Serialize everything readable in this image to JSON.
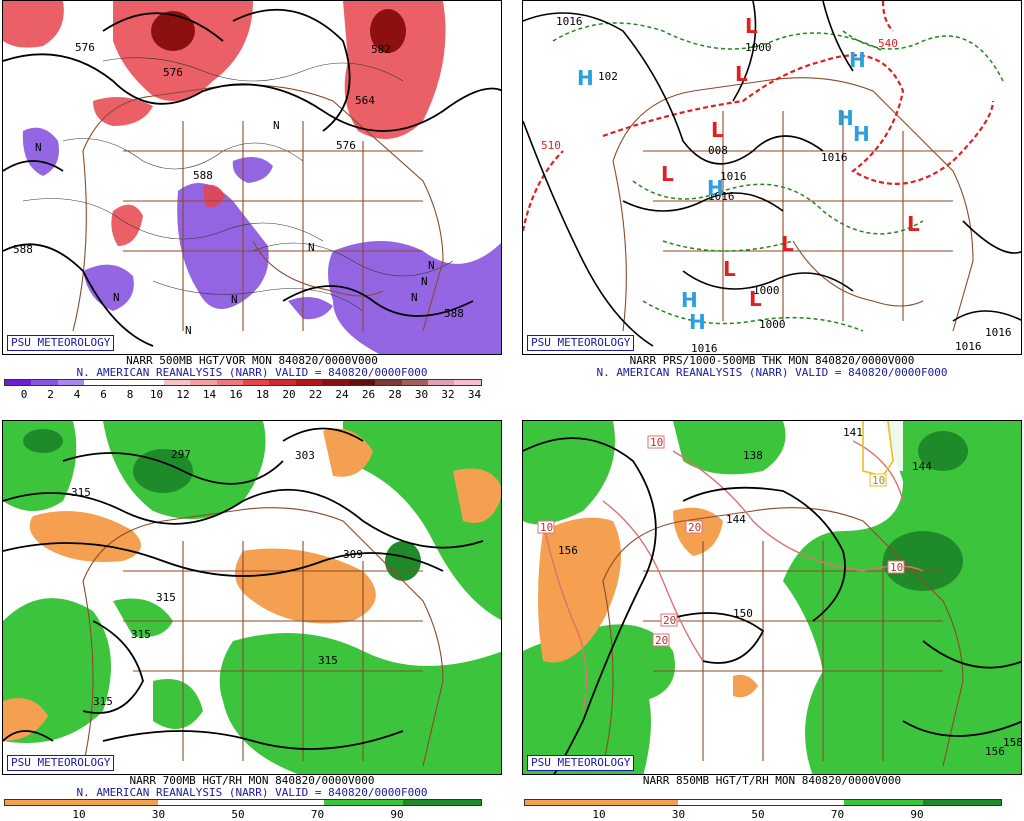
{
  "colors": {
    "vor_red": "#e8444c",
    "vor_pink": "#f4a0a6",
    "vor_purple": "#8855e0",
    "rh_orange": "#f4a050",
    "rh_green": "#3cc43c",
    "map_brown": "#8b4a2a",
    "h_blue": "#2aa0e0",
    "l_red": "#e02020"
  },
  "panels": [
    {
      "logo": "PSU METEOROLOGY",
      "title1": "NARR 500MB HGT/VOR MON 840820/0000V000",
      "title2": "N. AMERICAN REANALYSIS (NARR) VALID = 840820/0000F000",
      "colorbar_labels": [
        "0",
        "2",
        "4",
        "6",
        "8",
        "10",
        "12",
        "14",
        "16",
        "18",
        "20",
        "22",
        "24",
        "26",
        "28",
        "30",
        "32",
        "34"
      ],
      "contour_labels": [
        "576",
        "576",
        "582",
        "564",
        "576",
        "588",
        "588",
        "588",
        "N",
        "N",
        "N",
        "N",
        "N",
        "N",
        "N",
        "N",
        "N"
      ]
    },
    {
      "logo": "PSU METEOROLOGY",
      "title1": "NARR PRS/1000-500MB THK MON 840820/0000V000",
      "title2": "N. AMERICAN REANALYSIS (NARR) VALID = 840820/0000F000",
      "contour_labels": [
        "1016",
        "102",
        "1000",
        "540",
        "510",
        "008",
        "1016",
        "1016",
        "1016",
        "1000",
        "1000",
        "1016",
        "1016",
        "1016"
      ],
      "highs": [
        "H",
        "H",
        "H",
        "H",
        "H",
        "H",
        "H"
      ],
      "lows": [
        "L",
        "L",
        "L",
        "L",
        "L",
        "L",
        "L",
        "L"
      ]
    },
    {
      "logo": "PSU METEOROLOGY",
      "title1": "NARR 700MB HGT/RH MON 840820/0000V000",
      "title2": "N. AMERICAN REANALYSIS (NARR) VALID = 840820/0000F000",
      "colorbar_labels": [
        "10",
        "30",
        "50",
        "70",
        "90"
      ],
      "contour_labels": [
        "297",
        "303",
        "315",
        "309",
        "315",
        "315",
        "315",
        "315"
      ]
    },
    {
      "logo": "PSU METEOROLOGY",
      "title1": "NARR 850MB HGT/T/RH MON 840820/0000V000",
      "colorbar_labels": [
        "10",
        "30",
        "50",
        "70",
        "90"
      ],
      "contour_labels": [
        "141",
        "138",
        "144",
        "156",
        "150",
        "144",
        "156",
        "158"
      ],
      "temp_labels": [
        "10",
        "10",
        "20",
        "20",
        "20",
        "10",
        "10"
      ]
    }
  ]
}
